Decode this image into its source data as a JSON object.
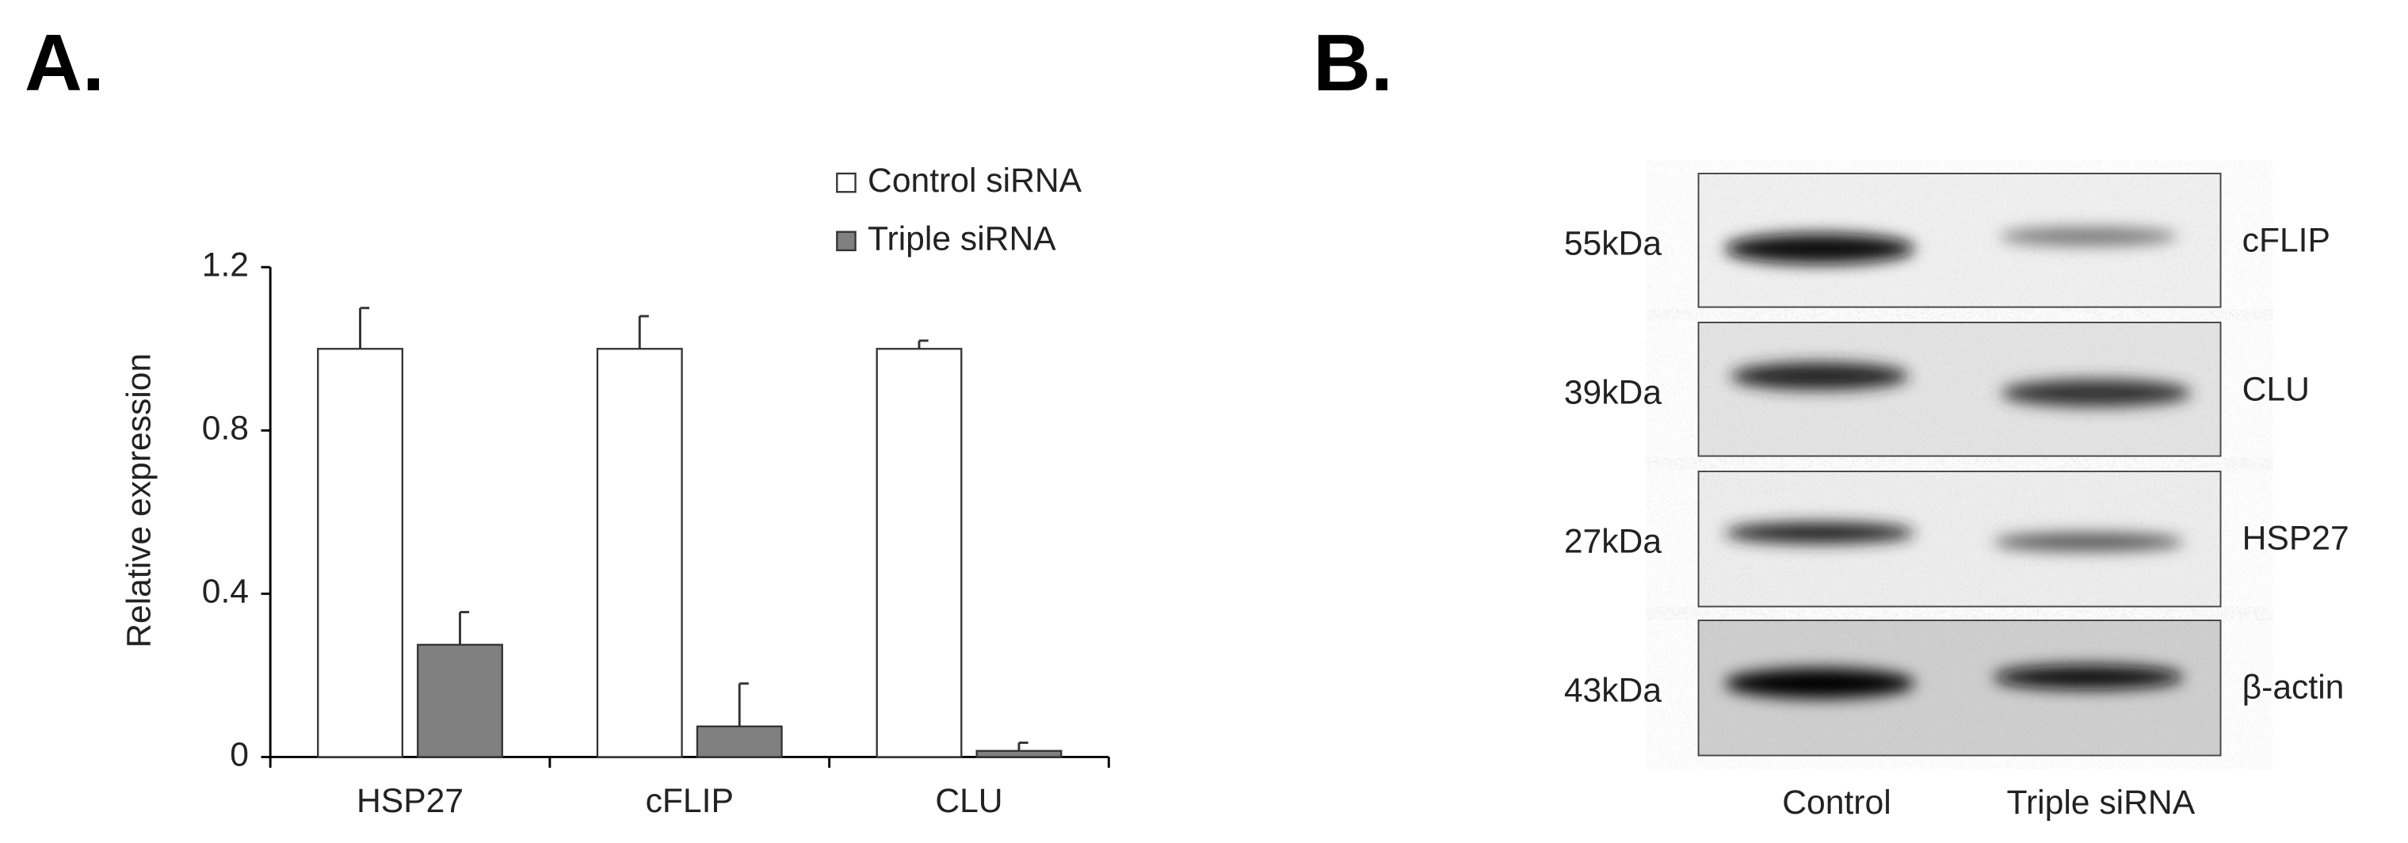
{
  "panel_a": {
    "label": "A."
  },
  "chart_data": {
    "type": "bar",
    "ylabel": "Relative expression",
    "categories": [
      "HSP27",
      "cFLIP",
      "CLU"
    ],
    "series": [
      {
        "name": "Control siRNA",
        "color": "#ffffff",
        "values": [
          1,
          1,
          1
        ],
        "errors": [
          0.1,
          0.08,
          0.02
        ]
      },
      {
        "name": "Triple siRNA",
        "color": "#808080",
        "values": [
          0.275,
          0.075,
          0.015
        ],
        "errors": [
          0.08,
          0.105,
          0.02
        ]
      }
    ],
    "ylim": [
      0,
      1.2
    ],
    "yticks": [
      0,
      0.4,
      0.8,
      1.2
    ],
    "legend": "top-right"
  },
  "panel_b": {
    "label": "B.",
    "rows": [
      {
        "weight": "55kDa",
        "protein": "cFLIP"
      },
      {
        "weight": "39kDa",
        "protein": "CLU"
      },
      {
        "weight": "27kDa",
        "protein": "HSP27"
      },
      {
        "weight": "43kDa",
        "protein": "β-actin"
      }
    ],
    "lanes": [
      "Control",
      "Triple siRNA"
    ]
  }
}
